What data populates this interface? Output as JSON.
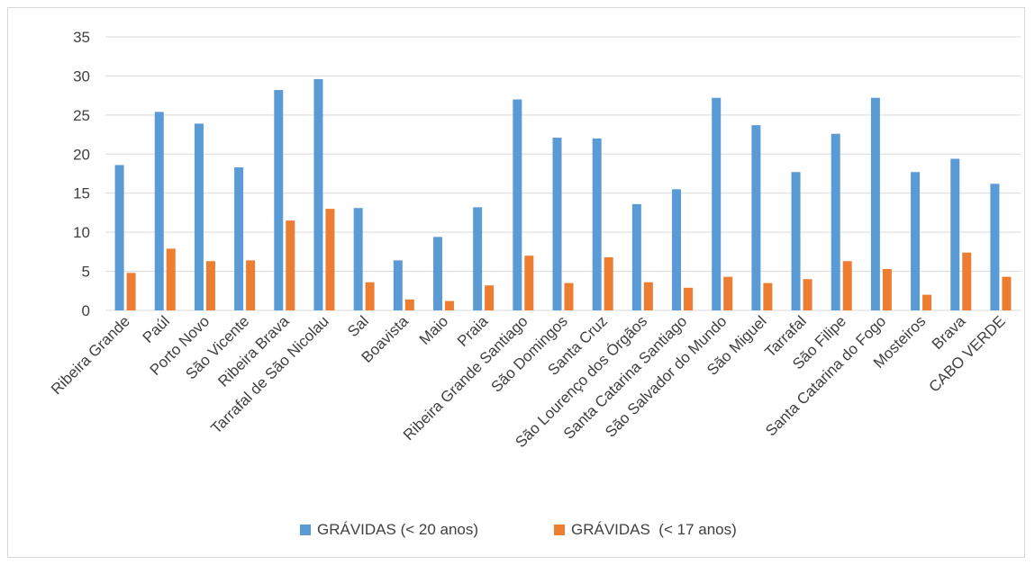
{
  "chart_data": {
    "type": "bar",
    "categories": [
      "Ribeira Grande",
      "Paúl",
      "Porto Novo",
      "São Vicente",
      "Ribeira Brava",
      "Tarrafal de São Nicolau",
      "Sal",
      "Boavista",
      "Maio",
      "Praia",
      "Ribeira Grande Santiago",
      "São Domingos",
      "Santa Cruz",
      "São Lourenço dos Órgãos",
      "Santa Catarina Santiago",
      "São Salvador do Mundo",
      "São Miguel",
      "Tarrafal",
      "São Filipe",
      "Santa Catarina do Fogo",
      "Mosteiros",
      "Brava",
      "CABO VERDE"
    ],
    "series": [
      {
        "name": "GRÁVIDAS (< 20 anos)",
        "color": "#5b9bd5",
        "values": [
          18.6,
          25.4,
          23.9,
          18.3,
          28.2,
          29.6,
          13.1,
          6.4,
          9.4,
          13.2,
          27.0,
          22.1,
          22.0,
          13.6,
          15.5,
          27.2,
          23.7,
          17.7,
          22.6,
          27.2,
          17.7,
          19.4,
          16.2
        ]
      },
      {
        "name": "GRÁVIDAS  (< 17 anos)",
        "color": "#ed7d31",
        "values": [
          4.8,
          7.9,
          6.3,
          6.4,
          11.5,
          13.0,
          3.6,
          1.4,
          1.2,
          3.2,
          7.0,
          3.5,
          6.8,
          3.6,
          2.9,
          4.3,
          3.5,
          4.0,
          6.3,
          5.3,
          2.0,
          7.4,
          4.3
        ]
      }
    ],
    "ylim": [
      0,
      35
    ],
    "yticks": [
      0,
      5,
      10,
      15,
      20,
      25,
      30,
      35
    ],
    "grid": true,
    "legend": "bottom",
    "gridline_color": "#d9d9d9"
  }
}
